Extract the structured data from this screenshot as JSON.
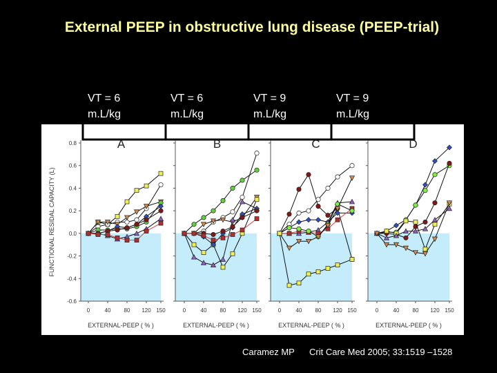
{
  "title": "External PEEP in obstructive lung disease (PEEP-trial)",
  "vt_labels": [
    {
      "line1": "VT = 6",
      "line2": "m.L/kg"
    },
    {
      "line1": "VT = 6",
      "line2": "m.L/kg"
    },
    {
      "line1": "VT = 9",
      "line2": "m.L/kg"
    },
    {
      "line1": "VT = 9",
      "line2": "m.L/kg"
    }
  ],
  "citation": {
    "author": "Caramez MP",
    "journal": "Crit Care Med 2005; 33:1519 –1528"
  },
  "chart_data": {
    "type": "line",
    "ylabel": "FUNCTIONAL RESIDAL CAPACITY (L)",
    "xlabel": "EXTERNAL-PEEP ( % )",
    "x": [
      0,
      20,
      40,
      60,
      80,
      100,
      120,
      150
    ],
    "x_ticks": [
      "0",
      "40",
      "80",
      "120",
      "150"
    ],
    "y_ticks": [
      "0.8",
      "0.6",
      "0.4",
      "0.2",
      "0.0",
      "-0.2",
      "-0.4",
      "-0.6"
    ],
    "ylim": [
      -0.6,
      0.8
    ],
    "negative_region_color": "#c4ecfa",
    "panels": [
      {
        "label": "A",
        "series": [
          {
            "marker": "square",
            "color": "#f0f050",
            "values": [
              0,
              0.1,
              0.08,
              0.15,
              0.28,
              0.38,
              0.42,
              0.53
            ]
          },
          {
            "marker": "circle",
            "color": "#ffffff",
            "values": [
              0,
              0.06,
              0.08,
              0.1,
              0.1,
              0.12,
              0.22,
              0.43
            ]
          },
          {
            "marker": "tri-down",
            "color": "#d08a50",
            "values": [
              0,
              0.1,
              0.1,
              0.08,
              0.14,
              0.19,
              0.24,
              0.28
            ]
          },
          {
            "marker": "circle",
            "color": "#60d040",
            "values": [
              0,
              0.03,
              0.03,
              0.04,
              0.04,
              0.06,
              0.1,
              0.27
            ]
          },
          {
            "marker": "diamond",
            "color": "#3050c0",
            "values": [
              0,
              0,
              0.02,
              0.06,
              0.05,
              0.08,
              0.15,
              0.24
            ]
          },
          {
            "marker": "circle",
            "color": "#801818",
            "values": [
              0,
              0,
              0.02,
              0.03,
              0.05,
              0.08,
              0.12,
              0.2
            ]
          },
          {
            "marker": "triangle",
            "color": "#9060c0",
            "values": [
              0,
              0,
              -0.02,
              -0.05,
              -0.03,
              0,
              0.04,
              0.13
            ]
          },
          {
            "marker": "square",
            "color": "#b03030",
            "line": "#e04040",
            "values": [
              0,
              -0.01,
              -0.01,
              -0.04,
              -0.06,
              -0.06,
              0.02,
              0.09
            ]
          }
        ]
      },
      {
        "label": "B",
        "series": [
          {
            "marker": "circle",
            "color": "#60d040",
            "values": [
              0,
              0.08,
              0.14,
              0.2,
              0.29,
              0.4,
              0.47,
              0.56
            ]
          },
          {
            "marker": "circle",
            "color": "#ffffff",
            "values": [
              0,
              0,
              0.02,
              0.1,
              0.14,
              0.19,
              0.32,
              0.71
            ]
          },
          {
            "marker": "tri-down",
            "color": "#d08a50",
            "values": [
              0,
              0,
              0.08,
              0.11,
              0.12,
              0.1,
              0.14,
              0.32
            ]
          },
          {
            "marker": "triangle",
            "color": "#9060c0",
            "values": [
              0,
              -0.21,
              -0.26,
              -0.28,
              -0.23,
              0.12,
              0.28,
              0.22
            ]
          },
          {
            "marker": "square",
            "color": "#f0f050",
            "values": [
              0,
              -0.1,
              -0.17,
              -0.1,
              -0.3,
              -0.18,
              0,
              0.3
            ]
          },
          {
            "marker": "diamond",
            "color": "#3050c0",
            "values": [
              0,
              0,
              -0.03,
              -0.1,
              0,
              0.05,
              0.17,
              0.22
            ]
          },
          {
            "marker": "circle",
            "color": "#801818",
            "values": [
              0,
              0,
              0,
              -0.01,
              0.02,
              0.06,
              0.14,
              0.2
            ]
          },
          {
            "marker": "square",
            "color": "#b03030",
            "line": "#e04040",
            "values": [
              0,
              0,
              -0.02,
              -0.06,
              -0.04,
              -0.01,
              0.03,
              0.13
            ]
          }
        ]
      },
      {
        "label": "C",
        "series": [
          {
            "marker": "circle",
            "color": "#801818",
            "values": [
              0,
              0.17,
              0.39,
              0.52,
              0.24,
              0.16,
              0.22,
              -0.23
            ]
          },
          {
            "marker": "circle",
            "color": "#ffffff",
            "values": [
              0,
              0.08,
              0.18,
              0.2,
              0.3,
              0.4,
              0.5,
              0.6
            ]
          },
          {
            "marker": "diamond",
            "color": "#3050c0",
            "values": [
              0,
              0.05,
              0.1,
              0.12,
              0.12,
              0.1,
              0.18,
              0.18
            ]
          },
          {
            "marker": "triangle",
            "color": "#9060c0",
            "values": [
              0,
              0,
              0,
              0.01,
              0.03,
              0.1,
              0.27,
              0.28
            ]
          },
          {
            "marker": "square",
            "color": "#b03030",
            "line": "#e04040",
            "values": [
              0,
              0,
              0.02,
              0.01,
              0,
              0.04,
              0.12,
              0.22
            ]
          },
          {
            "marker": "circle",
            "color": "#80f040",
            "values": [
              0,
              0.05,
              0.04,
              0.02,
              -0.03,
              0.08,
              0.26,
              0.2
            ]
          },
          {
            "marker": "tri-down",
            "color": "#d08a50",
            "values": [
              0,
              -0.13,
              -0.07,
              -0.07,
              -0.03,
              0.07,
              0.22,
              0.49
            ]
          },
          {
            "marker": "square",
            "color": "#f0f050",
            "values": [
              0,
              -0.46,
              -0.44,
              -0.36,
              -0.34,
              -0.31,
              -0.28,
              -0.23
            ]
          }
        ]
      },
      {
        "label": "D",
        "series": [
          {
            "marker": "diamond",
            "color": "#3050c0",
            "values": [
              0,
              0.02,
              0.07,
              0.12,
              0.25,
              0.43,
              0.64,
              0.76
            ]
          },
          {
            "marker": "circle",
            "color": "#80f040",
            "values": [
              0,
              0.01,
              0.01,
              0.12,
              0.25,
              0.38,
              0.52,
              0.6
            ]
          },
          {
            "marker": "circle",
            "color": "#801818",
            "values": [
              0,
              0,
              -0.01,
              -0.04,
              0.06,
              0.1,
              0.27,
              0.62
            ]
          },
          {
            "marker": "square",
            "color": "#f0f050",
            "values": [
              0,
              0.02,
              0,
              0.11,
              0.1,
              -0.14,
              0.08,
              0.26
            ]
          },
          {
            "marker": "triangle",
            "color": "#9060c0",
            "values": [
              0,
              -0.04,
              -0.02,
              0.02,
              0.02,
              0.04,
              0.12,
              0.22
            ]
          },
          {
            "marker": "tri-down",
            "color": "#d08a50",
            "values": [
              0,
              -0.1,
              -0.1,
              -0.13,
              -0.17,
              -0.18,
              -0.05,
              0.27
            ]
          }
        ]
      }
    ]
  }
}
